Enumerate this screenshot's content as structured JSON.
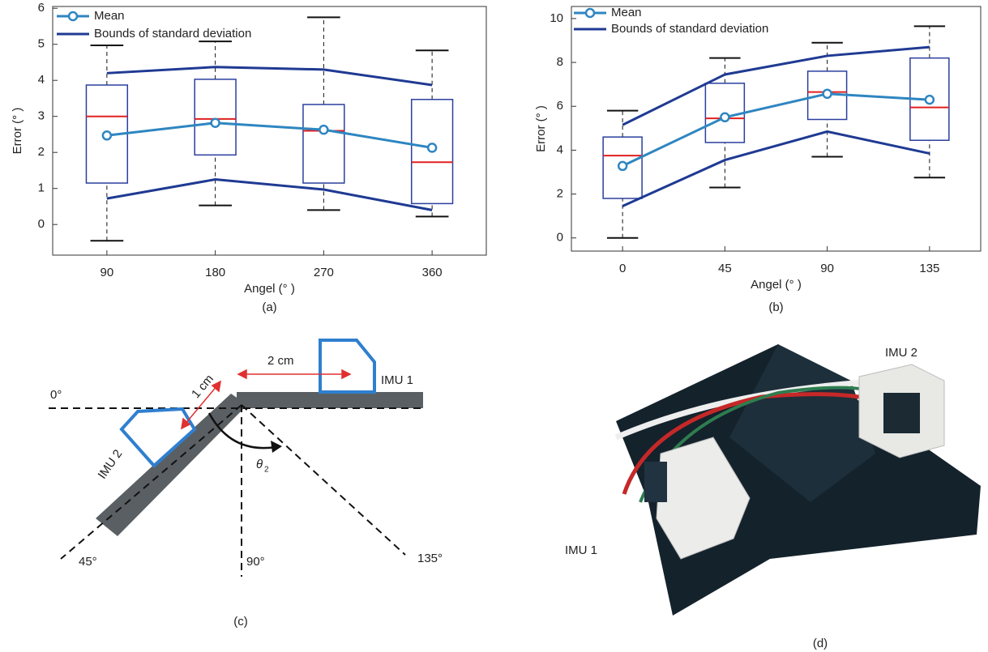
{
  "chart_data": [
    {
      "type": "box",
      "caption": "(a)",
      "xlabel": "Angel (° )",
      "ylabel": "Error (° )",
      "categories": [
        "90",
        "180",
        "270",
        "360"
      ],
      "ylim": [
        -0.85,
        6.05
      ],
      "yticks": [
        0,
        1,
        2,
        3,
        4,
        5,
        6
      ],
      "box_color": "#2b3f9e",
      "median_color": "#e02020",
      "boxes": {
        "whisker_low": [
          -0.45,
          0.53,
          0.4,
          0.22
        ],
        "q1": [
          1.15,
          1.93,
          1.15,
          0.58
        ],
        "median": [
          3.0,
          2.93,
          2.6,
          1.73
        ],
        "q3": [
          3.87,
          4.03,
          3.33,
          3.47
        ],
        "whisker_high": [
          4.97,
          5.08,
          5.75,
          4.83
        ]
      },
      "series": [
        {
          "name": "Mean",
          "color": "#2e86c1",
          "values": [
            2.47,
            2.82,
            2.63,
            2.13
          ]
        },
        {
          "name": "Bounds of standard deviation",
          "color": "#1f3a93",
          "upper": [
            4.2,
            4.37,
            4.3,
            3.87
          ],
          "lower": [
            0.72,
            1.25,
            0.97,
            0.4
          ]
        }
      ]
    },
    {
      "type": "box",
      "caption": "(b)",
      "xlabel": "Angel (° )",
      "ylabel": "Error (° )",
      "categories": [
        "0",
        "45",
        "90",
        "135"
      ],
      "ylim": [
        -0.6,
        10.55
      ],
      "yticks": [
        0,
        2,
        4,
        6,
        8,
        10
      ],
      "box_color": "#2b3f9e",
      "median_color": "#e02020",
      "boxes": {
        "whisker_low": [
          0,
          2.3,
          3.7,
          2.75
        ],
        "q1": [
          1.8,
          4.35,
          5.4,
          4.45
        ],
        "median": [
          3.75,
          5.45,
          6.65,
          5.95
        ],
        "q3": [
          4.6,
          7.05,
          7.6,
          8.2
        ],
        "whisker_high": [
          5.8,
          8.2,
          8.9,
          9.65
        ]
      },
      "series": [
        {
          "name": "Mean",
          "color": "#2e86c1",
          "values": [
            3.28,
            5.5,
            6.57,
            6.3
          ]
        },
        {
          "name": "Bounds of standard deviation",
          "color": "#1f3a93",
          "upper": [
            5.15,
            7.45,
            8.3,
            8.7
          ],
          "lower": [
            1.45,
            3.55,
            4.85,
            3.85
          ]
        }
      ]
    }
  ],
  "diagram": {
    "distance_1": "2 cm",
    "distance_2": "1 cm",
    "imu_1": "IMU 1",
    "imu_2": "IMU 2",
    "angle_0": "0°",
    "angle_45": "45°",
    "angle_90": "90°",
    "angle_135": "135°",
    "theta": "θ",
    "theta_sub": "2",
    "caption": "(c)"
  },
  "photo": {
    "imu_1": "IMU 1",
    "imu_2": "IMU 2",
    "caption": "(d)"
  }
}
